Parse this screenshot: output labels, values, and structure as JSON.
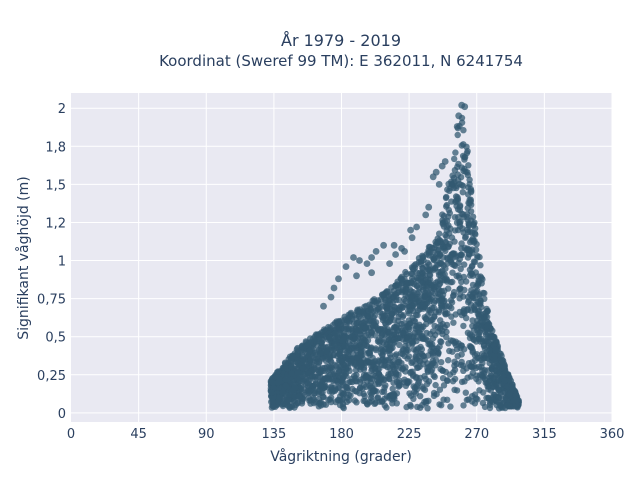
{
  "chart_data": {
    "type": "scatter",
    "title_line1": "År 1979 - 2019",
    "title_line2": "Koordinat (Sweref 99 TM): E 362011, N 6241754",
    "xlabel": "Vågriktning (grader)",
    "ylabel": "Signifikant våghöjd (m)",
    "xlim": [
      0,
      360
    ],
    "ylim": [
      -0.06,
      2.1
    ],
    "xticks": [
      0,
      45,
      90,
      135,
      180,
      225,
      270,
      315,
      360
    ],
    "xtick_labels": [
      "0",
      "45",
      "90",
      "135",
      "180",
      "225",
      "270",
      "315",
      "360"
    ],
    "yticks": [
      0,
      0.25,
      0.5,
      0.75,
      1,
      1.25,
      1.5,
      1.75,
      2
    ],
    "ytick_labels": [
      "0",
      "0,25",
      "0,5",
      "0,75",
      "1",
      "1,2",
      "1,5",
      "1,8",
      "2"
    ],
    "grid": true,
    "colors": {
      "background": "#e9e9f2",
      "grid": "#ffffff",
      "marker": "#335a72",
      "text": "#2a3f5f"
    },
    "envelope": [
      [
        133,
        0.22
      ],
      [
        140,
        0.3
      ],
      [
        150,
        0.42
      ],
      [
        160,
        0.5
      ],
      [
        170,
        0.56
      ],
      [
        180,
        0.62
      ],
      [
        190,
        0.68
      ],
      [
        200,
        0.74
      ],
      [
        210,
        0.8
      ],
      [
        220,
        0.9
      ],
      [
        230,
        1.0
      ],
      [
        240,
        1.12
      ],
      [
        245,
        1.25
      ],
      [
        250,
        1.45
      ],
      [
        255,
        1.75
      ],
      [
        260,
        2.0
      ],
      [
        263,
        1.85
      ],
      [
        266,
        1.5
      ],
      [
        270,
        1.15
      ],
      [
        275,
        0.8
      ],
      [
        280,
        0.55
      ],
      [
        290,
        0.28
      ],
      [
        298,
        0.08
      ]
    ],
    "outliers": [
      [
        260,
        2.02
      ],
      [
        262,
        2.01
      ],
      [
        258,
        1.95
      ],
      [
        257,
        1.88
      ],
      [
        241,
        1.55
      ],
      [
        243,
        1.58
      ],
      [
        245,
        1.5
      ],
      [
        247,
        1.62
      ],
      [
        249,
        1.65
      ],
      [
        236,
        1.3
      ],
      [
        238,
        1.35
      ],
      [
        230,
        1.22
      ],
      [
        226,
        1.2
      ],
      [
        227,
        1.15
      ],
      [
        220,
        1.08
      ],
      [
        215,
        1.1
      ],
      [
        208,
        1.1
      ],
      [
        203,
        1.06
      ],
      [
        200,
        1.02
      ],
      [
        197,
        0.98
      ],
      [
        192,
        1.0
      ],
      [
        188,
        1.02
      ],
      [
        183,
        0.96
      ],
      [
        178,
        0.88
      ],
      [
        175,
        0.82
      ],
      [
        173,
        0.76
      ],
      [
        168,
        0.7
      ],
      [
        200,
        0.92
      ],
      [
        190,
        0.9
      ],
      [
        212,
        0.98
      ],
      [
        222,
        1.06
      ],
      [
        216,
        1.04
      ]
    ]
  }
}
